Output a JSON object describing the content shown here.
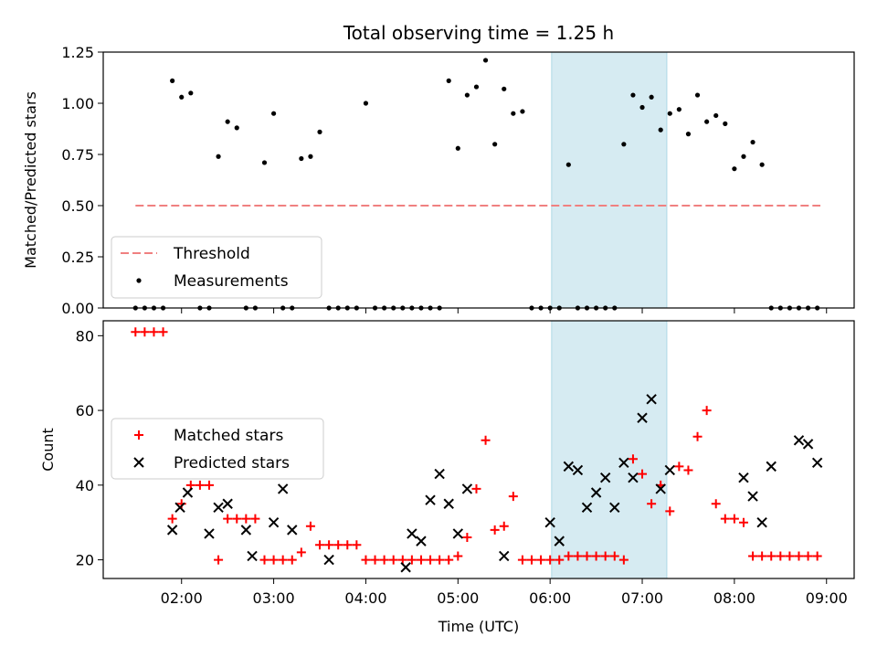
{
  "chart_data": [
    {
      "type": "scatter",
      "title": "Total observing time = 1.25 h",
      "xlabel": "",
      "ylabel": "Matched/Predicted stars",
      "xlim": [
        "01:09",
        "09:18"
      ],
      "ylim": [
        0,
        1.25
      ],
      "yticks": [
        "0.00",
        "0.25",
        "0.50",
        "0.75",
        "1.00",
        "1.25"
      ],
      "highlight_span": [
        "06:01",
        "07:16"
      ],
      "threshold": {
        "name": "Threshold",
        "value": 0.5,
        "x_range": [
          "01:30",
          "08:56"
        ],
        "color": "#f08080"
      },
      "measurements_name": "Measurements",
      "measurements": {
        "x": [
          "01:30",
          "01:36",
          "01:42",
          "01:48",
          "01:54",
          "02:00",
          "02:06",
          "02:12",
          "02:18",
          "02:24",
          "02:30",
          "02:36",
          "02:42",
          "02:48",
          "02:54",
          "03:00",
          "03:06",
          "03:12",
          "03:18",
          "03:24",
          "03:30",
          "03:36",
          "03:42",
          "03:48",
          "03:54",
          "04:00",
          "04:06",
          "04:12",
          "04:18",
          "04:24",
          "04:30",
          "04:36",
          "04:42",
          "04:48",
          "04:54",
          "05:00",
          "05:06",
          "05:12",
          "05:18",
          "05:24",
          "05:30",
          "05:36",
          "05:42",
          "05:48",
          "05:54",
          "06:00",
          "06:06",
          "06:12",
          "06:18",
          "06:24",
          "06:30",
          "06:36",
          "06:42",
          "06:48",
          "06:54",
          "07:00",
          "07:06",
          "07:12",
          "07:18",
          "07:24",
          "07:30",
          "07:36",
          "07:42",
          "07:48",
          "07:54",
          "08:00",
          "08:06",
          "08:12",
          "08:18",
          "08:24",
          "08:30",
          "08:36",
          "08:42",
          "08:48",
          "08:54"
        ],
        "y": [
          0,
          0,
          0,
          0,
          1.11,
          1.03,
          1.05,
          0,
          0,
          0.74,
          0.91,
          0.88,
          0,
          0,
          0.71,
          0.95,
          0,
          0,
          0.73,
          0.74,
          0.86,
          0,
          0,
          0,
          0,
          1.0,
          0,
          0,
          0,
          0,
          0,
          0,
          0,
          0,
          1.11,
          0.78,
          1.04,
          1.08,
          1.21,
          0.8,
          1.07,
          0.95,
          0.96,
          0,
          0,
          0,
          0,
          0.7,
          0,
          0,
          0,
          0,
          0,
          0.8,
          1.04,
          0.98,
          1.03,
          0.87,
          0.95,
          0.97,
          0.85,
          1.04,
          0.91,
          0.94,
          0.9,
          0.68,
          0.74,
          0.81,
          0.7,
          0,
          0,
          0,
          0,
          0,
          0
        ]
      },
      "legend": "lower-left"
    },
    {
      "type": "scatter",
      "title": "",
      "xlabel": "Time (UTC)",
      "ylabel": "Count",
      "xlim": [
        "01:09",
        "09:18"
      ],
      "ylim": [
        15,
        84
      ],
      "xticks": [
        "02:00",
        "03:00",
        "04:00",
        "05:00",
        "06:00",
        "07:00",
        "08:00",
        "09:00"
      ],
      "yticks": [
        "20",
        "40",
        "60",
        "80"
      ],
      "highlight_span": [
        "06:01",
        "07:16"
      ],
      "series": [
        {
          "name": "Matched stars",
          "marker": "plus",
          "color": "#ff0000",
          "x": [
            "01:30",
            "01:36",
            "01:42",
            "01:48",
            "01:54",
            "02:00",
            "02:06",
            "02:12",
            "02:18",
            "02:24",
            "02:30",
            "02:36",
            "02:42",
            "02:48",
            "02:54",
            "03:00",
            "03:06",
            "03:12",
            "03:18",
            "03:24",
            "03:30",
            "03:36",
            "03:42",
            "03:48",
            "03:54",
            "04:00",
            "04:06",
            "04:12",
            "04:18",
            "04:24",
            "04:30",
            "04:36",
            "04:42",
            "04:48",
            "04:54",
            "05:00",
            "05:06",
            "05:12",
            "05:18",
            "05:24",
            "05:30",
            "05:36",
            "05:42",
            "05:48",
            "05:54",
            "06:00",
            "06:06",
            "06:12",
            "06:18",
            "06:24",
            "06:30",
            "06:36",
            "06:42",
            "06:48",
            "06:54",
            "07:00",
            "07:06",
            "07:12",
            "07:18",
            "07:24",
            "07:30",
            "07:36",
            "07:42",
            "07:48",
            "07:54",
            "08:00",
            "08:06",
            "08:12",
            "08:18",
            "08:24",
            "08:30",
            "08:36",
            "08:42",
            "08:48",
            "08:54"
          ],
          "y": [
            81,
            81,
            81,
            81,
            31,
            35,
            40,
            40,
            40,
            20,
            31,
            31,
            31,
            31,
            20,
            20,
            20,
            20,
            22,
            29,
            24,
            24,
            24,
            24,
            24,
            20,
            20,
            20,
            20,
            20,
            20,
            20,
            20,
            20,
            20,
            21,
            26,
            39,
            52,
            28,
            29,
            37,
            20,
            20,
            20,
            20,
            20,
            21,
            21,
            21,
            21,
            21,
            21,
            20,
            47,
            43,
            35,
            40,
            33,
            45,
            44,
            53,
            60,
            35,
            31,
            31,
            30,
            21,
            21,
            21,
            21,
            21,
            21,
            21,
            21
          ]
        },
        {
          "name": "Predicted stars",
          "marker": "x",
          "color": "#000000",
          "x": [
            "01:54",
            "01:59",
            "02:04",
            "02:18",
            "02:24",
            "02:30",
            "02:42",
            "02:46",
            "03:00",
            "03:06",
            "03:12",
            "03:36",
            "04:26",
            "04:30",
            "04:36",
            "04:42",
            "04:48",
            "04:54",
            "05:00",
            "05:06",
            "05:30",
            "06:00",
            "06:06",
            "06:12",
            "06:18",
            "06:24",
            "06:30",
            "06:36",
            "06:42",
            "06:48",
            "06:54",
            "07:00",
            "07:06",
            "07:12",
            "07:18",
            "08:06",
            "08:12",
            "08:18",
            "08:24",
            "08:42",
            "08:48",
            "08:54"
          ],
          "y": [
            28,
            34,
            38,
            27,
            34,
            35,
            28,
            21,
            30,
            39,
            28,
            20,
            18,
            27,
            25,
            36,
            43,
            35,
            27,
            39,
            21,
            30,
            25,
            45,
            44,
            34,
            38,
            42,
            34,
            46,
            42,
            58,
            63,
            39,
            44,
            42,
            37,
            30,
            45,
            52,
            51,
            46
          ]
        }
      ],
      "legend": "center-left"
    }
  ]
}
